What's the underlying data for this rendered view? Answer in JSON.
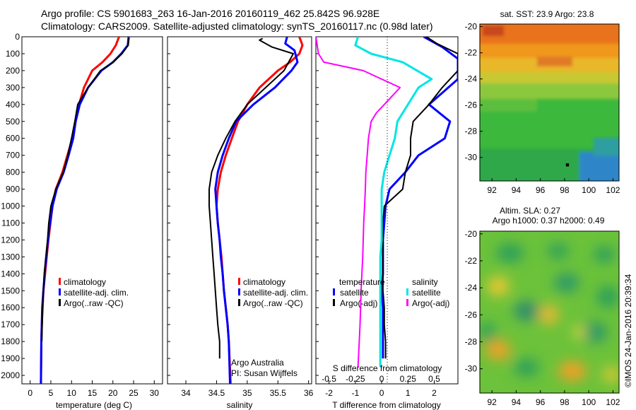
{
  "header": {
    "line1": "Argo profile: CS 5901683_263 16-Jan-2016 20160119_462 25.842S 96.928E",
    "line2": "Climatology: CARS2009. Satellite-adjusted climatology: synTS_20160117.nc (0.98d later)"
  },
  "colors": {
    "climatology": "#ff0000",
    "satellite": "#0000ff",
    "argo": "#000000",
    "sat_s": "#00e5e5",
    "argo_s": "#ff00ff"
  },
  "chart_data": [
    {
      "type": "line",
      "panel": "temperature",
      "xlabel": "temperature (deg C)",
      "xticks": [
        0,
        5,
        10,
        15,
        20,
        25,
        30
      ],
      "xlim": [
        -2,
        32
      ],
      "ylim": [
        2050,
        0
      ],
      "yticks": [
        0,
        100,
        200,
        300,
        400,
        500,
        600,
        700,
        800,
        900,
        1000,
        1100,
        1200,
        1300,
        1400,
        1500,
        1600,
        1700,
        1800,
        1900,
        2000
      ],
      "legend": [
        "climatology",
        "satellite-adj. clim.",
        "Argo(..raw -QC)"
      ],
      "series": [
        {
          "name": "climatology",
          "color": "#ff0000",
          "width": 3,
          "x": [
            21.5,
            20.7,
            19.4,
            17.5,
            15.0,
            13.0,
            11.8,
            10.9,
            10.2,
            9.0,
            7.8,
            6.2,
            5.4,
            4.9,
            4.4,
            4.0,
            3.6,
            3.2,
            3.0,
            2.8,
            2.7,
            2.6
          ],
          "y": [
            0,
            50,
            100,
            150,
            200,
            300,
            400,
            500,
            600,
            700,
            800,
            900,
            1000,
            1100,
            1200,
            1300,
            1400,
            1500,
            1600,
            1700,
            1800,
            2050
          ]
        },
        {
          "name": "satellite-adj. clim.",
          "color": "#0000ff",
          "width": 3,
          "x": [
            23.8,
            23.6,
            22.0,
            20.0,
            17.2,
            14.0,
            12.0,
            11.0,
            10.4,
            9.3,
            8.1,
            6.4,
            5.4,
            4.8,
            4.3,
            3.9,
            3.5,
            3.2,
            2.9,
            2.8,
            2.7,
            2.6
          ],
          "y": [
            0,
            50,
            100,
            150,
            200,
            300,
            400,
            500,
            600,
            700,
            800,
            900,
            1000,
            1100,
            1200,
            1300,
            1400,
            1500,
            1600,
            1700,
            1800,
            2050
          ]
        },
        {
          "name": "Argo(..raw -QC)",
          "color": "#000000",
          "width": 2,
          "x": [
            23.9,
            23.7,
            22.2,
            20.1,
            17.0,
            14.0,
            11.5,
            10.8,
            10.0,
            9.1,
            8.0,
            6.2,
            5.0,
            4.5,
            4.2,
            3.8,
            3.4,
            3.2,
            3.0,
            2.9,
            2.8
          ],
          "y": [
            5,
            50,
            100,
            150,
            200,
            300,
            400,
            500,
            600,
            700,
            800,
            900,
            1000,
            1100,
            1200,
            1300,
            1400,
            1500,
            1600,
            1700,
            1800
          ]
        }
      ]
    },
    {
      "type": "line",
      "panel": "salinity",
      "xlabel": "salinity",
      "xticks": [
        "34",
        "34.5",
        "35",
        "35.5",
        "36"
      ],
      "xtick_values": [
        34,
        34.5,
        35,
        35.5,
        36
      ],
      "xlim": [
        33.7,
        36.05
      ],
      "ylim": [
        2050,
        0
      ],
      "legend": [
        "climatology",
        "satellite-adj. clim.",
        "Argo(..raw -QC)"
      ],
      "credit": [
        "Argo Australia",
        "PI: Susan Wijffels"
      ],
      "series": [
        {
          "name": "climatology",
          "color": "#ff0000",
          "width": 3,
          "x": [
            35.85,
            35.9,
            35.85,
            35.7,
            35.5,
            35.2,
            35.0,
            34.85,
            34.75,
            34.65,
            34.57,
            34.52,
            34.5,
            34.52,
            34.55,
            34.58,
            34.6,
            34.62,
            34.65,
            34.68,
            34.7,
            34.73
          ],
          "y": [
            0,
            50,
            100,
            150,
            200,
            300,
            400,
            500,
            600,
            700,
            800,
            900,
            1000,
            1100,
            1200,
            1300,
            1400,
            1500,
            1600,
            1700,
            1800,
            2050
          ]
        },
        {
          "name": "satellite-adj. clim.",
          "color": "#0000ff",
          "width": 3,
          "x": [
            35.65,
            35.62,
            35.77,
            35.82,
            35.72,
            35.45,
            35.1,
            34.82,
            34.7,
            34.6,
            34.52,
            34.48,
            34.5,
            34.52,
            34.55,
            34.57,
            34.6,
            34.62,
            34.65,
            34.68,
            34.7,
            34.72
          ],
          "y": [
            0,
            40,
            80,
            150,
            200,
            300,
            400,
            500,
            600,
            700,
            800,
            900,
            1000,
            1100,
            1200,
            1300,
            1400,
            1500,
            1600,
            1700,
            1800,
            2050
          ]
        },
        {
          "name": "Argo(..raw -QC)",
          "color": "#000000",
          "width": 2,
          "x": [
            35.25,
            35.2,
            35.4,
            35.75,
            35.6,
            35.3,
            35.0,
            34.8,
            34.65,
            34.52,
            34.42,
            34.38,
            34.38,
            34.4,
            34.42,
            34.44,
            34.46,
            34.48,
            34.5,
            34.52,
            34.55,
            34.55
          ],
          "y": [
            10,
            20,
            60,
            100,
            200,
            300,
            400,
            500,
            600,
            700,
            800,
            900,
            1000,
            1100,
            1200,
            1300,
            1400,
            1500,
            1600,
            1700,
            1800,
            1900
          ]
        }
      ]
    },
    {
      "type": "line",
      "panel": "difference",
      "xlabel": "T difference from climatology",
      "xticks": [
        -2,
        -1,
        0,
        1,
        2
      ],
      "xlim": [
        -2.5,
        2.9
      ],
      "ylim": [
        2050,
        0
      ],
      "top_axis_label": "S difference from climatology",
      "top_ticks": [
        "-0.5",
        "-0.25",
        "0",
        "0.25",
        "0.5"
      ],
      "top_tick_values": [
        -2,
        -1,
        0,
        1,
        2
      ],
      "legend_headers": [
        "temperature",
        "salinity"
      ],
      "legend": [
        "satellite",
        "Argo(-adj)",
        "satellite",
        "Argo(-adj)"
      ],
      "series": [
        {
          "name": "satellite (T)",
          "color": "#0000ff",
          "width": 3,
          "x": [
            1.6,
            2.3,
            2.9,
            2.9,
            1.8,
            2.2,
            2.6,
            2.4,
            1.4,
            0.9,
            0.3,
            0.15,
            0.1,
            0.05,
            0.05,
            0.05,
            0.0,
            0.05,
            0.05,
            0.05,
            0.05
          ],
          "y": [
            0,
            60,
            130,
            250,
            400,
            450,
            500,
            600,
            700,
            800,
            900,
            1000,
            1100,
            1200,
            1300,
            1400,
            1500,
            1600,
            1700,
            1800,
            1900
          ]
        },
        {
          "name": "Argo(-adj) (T)",
          "color": "#000000",
          "width": 2,
          "x": [
            1.7,
            2.1,
            2.9,
            2.9,
            2.3,
            1.8,
            1.2,
            1.1,
            1.1,
            0.9,
            0.8,
            0.1,
            0.05,
            0.05,
            0.05,
            0.05,
            0.05,
            0.1,
            0.1,
            0.15,
            0.15
          ],
          "y": [
            0,
            40,
            100,
            200,
            300,
            400,
            500,
            600,
            700,
            800,
            900,
            1000,
            1100,
            1200,
            1300,
            1400,
            1500,
            1600,
            1700,
            1800,
            1900
          ]
        },
        {
          "name": "satellite (S)",
          "color": "#00e5e5",
          "width": 3,
          "x": [
            -0.9,
            -1.0,
            -0.4,
            0.8,
            1.9,
            1.4,
            1.0,
            0.6,
            0.5,
            0.3,
            0.1,
            0.0,
            0.0,
            0.0,
            0.0,
            -0.05,
            -0.05,
            -0.05,
            -0.05,
            -0.05,
            -0.05,
            -0.05
          ],
          "y": [
            0,
            50,
            100,
            150,
            250,
            300,
            400,
            500,
            600,
            700,
            800,
            900,
            1000,
            1100,
            1200,
            1300,
            1400,
            1500,
            1600,
            1700,
            1800,
            1950
          ]
        },
        {
          "name": "Argo(-adj) (S)",
          "color": "#ff00ff",
          "width": 2,
          "x": [
            -2.5,
            -2.4,
            -2.2,
            -0.7,
            0.7,
            0.1,
            -0.2,
            -0.4,
            -0.5,
            -0.55,
            -0.6,
            -0.62,
            -0.65,
            -0.68,
            -0.7,
            -0.72,
            -0.75,
            -0.78,
            -0.8,
            -0.82,
            -0.85,
            -0.9
          ],
          "y": [
            0,
            100,
            150,
            200,
            300,
            400,
            450,
            500,
            600,
            700,
            800,
            900,
            1000,
            1100,
            1200,
            1300,
            1400,
            1500,
            1600,
            1700,
            1800,
            1950
          ]
        }
      ]
    },
    {
      "type": "heatmap",
      "panel": "sst_map",
      "title": "sat. SST: 23.9 Argo: 23.8",
      "xticks": [
        92,
        94,
        96,
        98,
        100,
        102
      ],
      "yticks": [
        -20,
        -22,
        -24,
        -26,
        -28,
        -30
      ],
      "xlim": [
        91,
        102.5
      ],
      "ylim": [
        -31.8,
        -19.8
      ],
      "field": "SST, warm north (orange) to cool south (green/blue)"
    },
    {
      "type": "heatmap",
      "panel": "sla_map",
      "title": "Altim. SLA: 0.27",
      "subtitle": "Argo h1000: 0.37 h2000: 0.49",
      "xticks": [
        92,
        94,
        96,
        98,
        100,
        102
      ],
      "yticks": [
        -20,
        -22,
        -24,
        -26,
        -28,
        -30
      ],
      "xlim": [
        91,
        102.5
      ],
      "ylim": [
        -31.8,
        -19.8
      ],
      "field": "sea level anomaly, green background with yellow/orange highs and teal lows"
    }
  ],
  "stamp": "©IMOS 24-Jan-2016 20:39:34"
}
